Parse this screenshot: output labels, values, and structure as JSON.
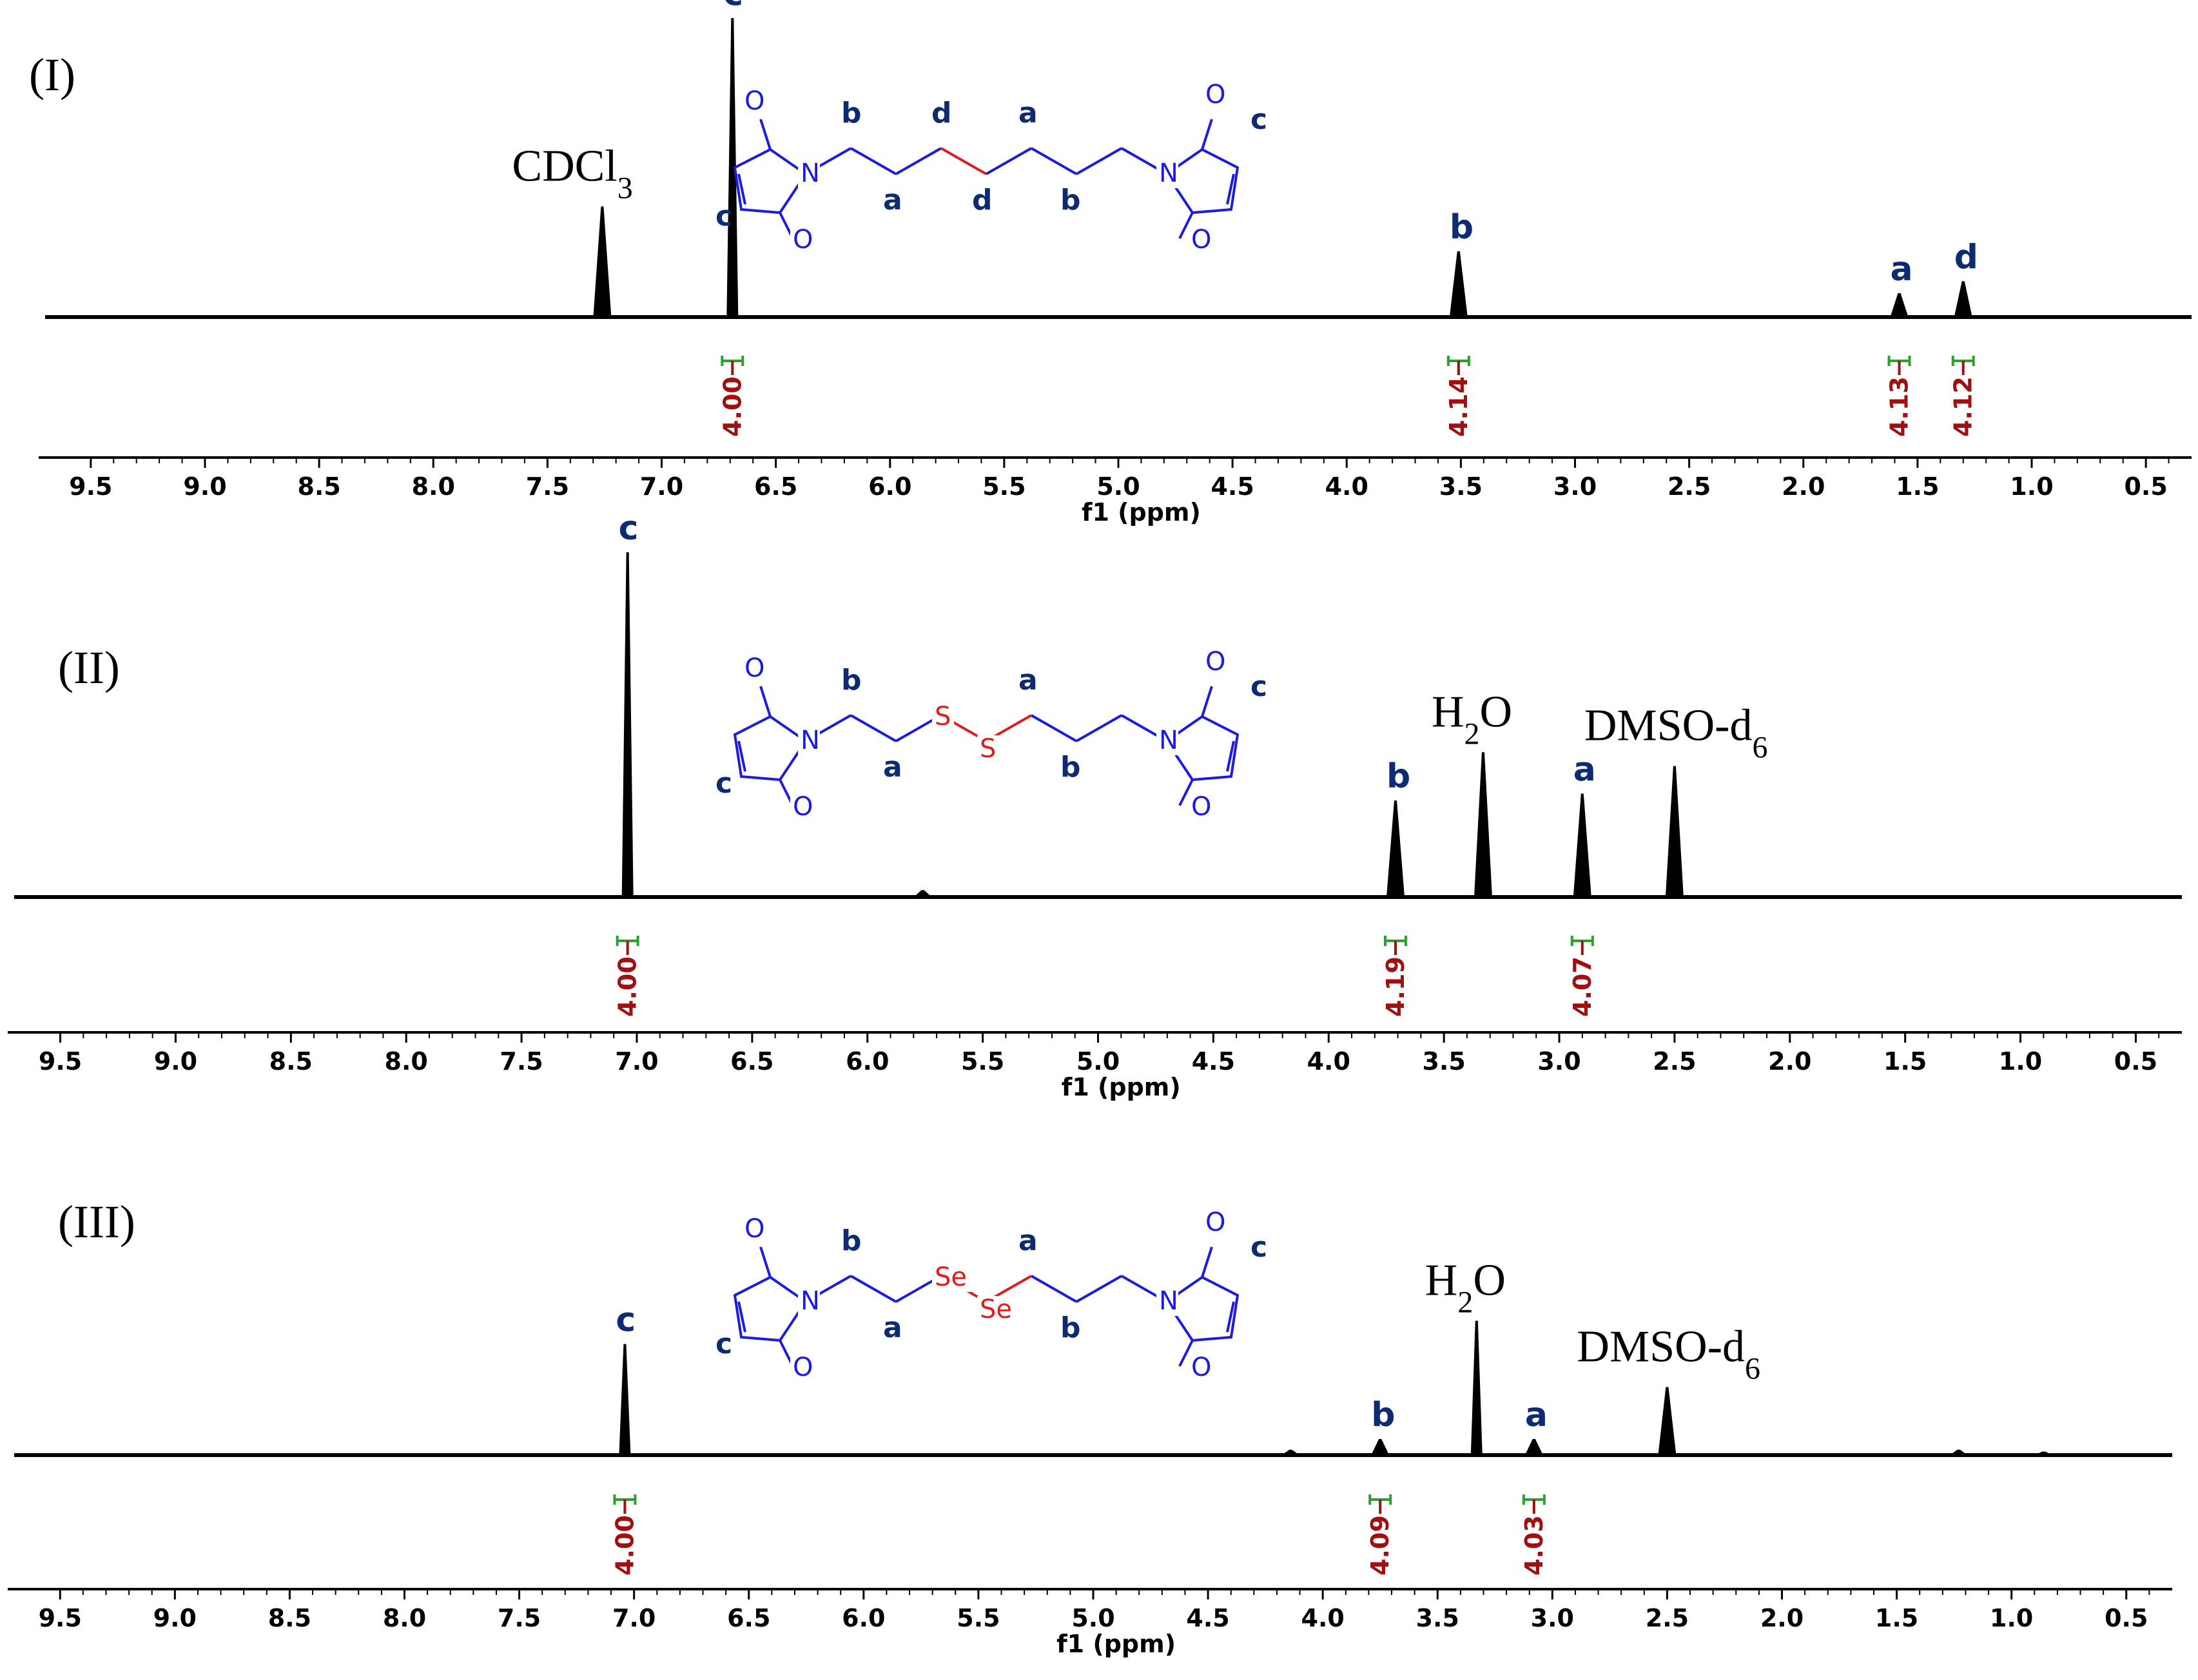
{
  "x_axis": {
    "ticks": [
      "9.5",
      "9.0",
      "8.5",
      "8.0",
      "7.5",
      "7.0",
      "6.5",
      "6.0",
      "5.5",
      "5.0",
      "4.5",
      "4.0",
      "3.5",
      "3.0",
      "2.5",
      "2.0",
      "1.5",
      "1.0",
      "0.5"
    ],
    "title": "f1 (ppm)"
  },
  "chart_data": [
    {
      "type": "line",
      "panel_label": "(I)",
      "xlabel": "f1 (ppm)",
      "xlim": [
        9.7,
        0.3
      ],
      "x_reversed": true,
      "solvent_labels": [
        {
          "base": "CDCl",
          "sub": "3",
          "ppm": 7.26
        }
      ],
      "peaks": [
        {
          "ppm": 7.26,
          "height": 0.37,
          "label": ""
        },
        {
          "ppm": 6.69,
          "height": 1.0,
          "label": "c"
        },
        {
          "ppm": 3.51,
          "height": 0.22,
          "label": "b"
        },
        {
          "ppm": 1.58,
          "height": 0.08,
          "label": "a"
        },
        {
          "ppm": 1.3,
          "height": 0.12,
          "label": "d"
        }
      ],
      "integrals": [
        {
          "ppm": 6.69,
          "value": "4.00"
        },
        {
          "ppm": 3.51,
          "value": "4.14"
        },
        {
          "ppm": 1.58,
          "value": "4.13"
        },
        {
          "ppm": 1.3,
          "value": "4.12"
        }
      ],
      "molecule": {
        "linker": "CH2CH2",
        "labels": [
          "b",
          "a",
          "d",
          "d",
          "a",
          "b",
          "c",
          "c"
        ],
        "atoms": [
          "O",
          "N",
          "O",
          "O",
          "N",
          "O"
        ]
      }
    },
    {
      "type": "line",
      "panel_label": "(II)",
      "xlabel": "f1 (ppm)",
      "xlim": [
        9.7,
        0.3
      ],
      "x_reversed": true,
      "solvent_labels": [
        {
          "base": "H",
          "sub": "2",
          "tail": "O",
          "ppm": 3.33
        },
        {
          "base": "DMSO-d",
          "sub": "6",
          "ppm": 2.5
        }
      ],
      "peaks": [
        {
          "ppm": 7.04,
          "height": 1.0,
          "label": "c"
        },
        {
          "ppm": 3.71,
          "height": 0.28,
          "label": "b"
        },
        {
          "ppm": 3.33,
          "height": 0.42,
          "label": ""
        },
        {
          "ppm": 2.9,
          "height": 0.3,
          "label": "a"
        },
        {
          "ppm": 2.5,
          "height": 0.38,
          "label": ""
        },
        {
          "ppm": 5.76,
          "height": 0.02,
          "label": ""
        }
      ],
      "integrals": [
        {
          "ppm": 7.04,
          "value": "4.00"
        },
        {
          "ppm": 3.71,
          "value": "4.19"
        },
        {
          "ppm": 2.9,
          "value": "4.07"
        }
      ],
      "molecule": {
        "linker": "S-S",
        "labels": [
          "b",
          "a",
          "a",
          "b",
          "c",
          "c"
        ],
        "atoms": [
          "O",
          "N",
          "O",
          "S",
          "S",
          "O",
          "N",
          "O"
        ]
      }
    },
    {
      "type": "line",
      "panel_label": "(III)",
      "xlabel": "f1 (ppm)",
      "xlim": [
        9.7,
        0.3
      ],
      "x_reversed": true,
      "solvent_labels": [
        {
          "base": "H",
          "sub": "2",
          "tail": "O",
          "ppm": 3.33
        },
        {
          "base": "DMSO-d",
          "sub": "6",
          "ppm": 2.5
        }
      ],
      "peaks": [
        {
          "ppm": 7.04,
          "height": 0.62,
          "label": "c"
        },
        {
          "ppm": 3.75,
          "height": 0.09,
          "label": "b"
        },
        {
          "ppm": 3.33,
          "height": 0.75,
          "label": ""
        },
        {
          "ppm": 3.08,
          "height": 0.09,
          "label": "a"
        },
        {
          "ppm": 2.5,
          "height": 0.38,
          "label": ""
        },
        {
          "ppm": 4.14,
          "height": 0.03,
          "label": ""
        },
        {
          "ppm": 1.23,
          "height": 0.03,
          "label": ""
        },
        {
          "ppm": 0.86,
          "height": 0.02,
          "label": ""
        }
      ],
      "integrals": [
        {
          "ppm": 7.04,
          "value": "4.00"
        },
        {
          "ppm": 3.75,
          "value": "4.09"
        },
        {
          "ppm": 3.08,
          "value": "4.03"
        }
      ],
      "molecule": {
        "linker": "Se-Se",
        "labels": [
          "b",
          "a",
          "a",
          "b",
          "c",
          "c"
        ],
        "atoms": [
          "O",
          "N",
          "O",
          "Se",
          "Se",
          "O",
          "N",
          "O"
        ]
      }
    }
  ]
}
